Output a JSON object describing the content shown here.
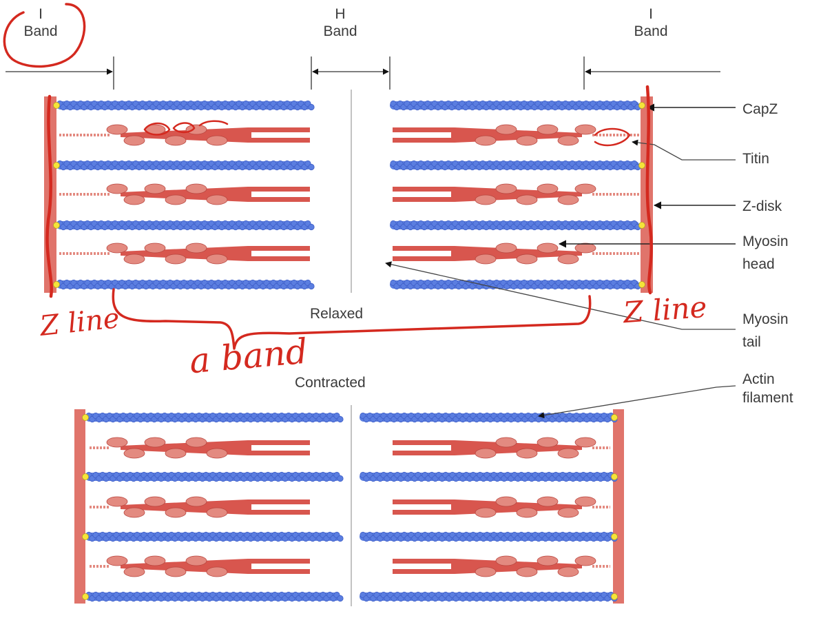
{
  "colors": {
    "actin": "#5b7ee0",
    "actin_dark": "#3f5fc8",
    "myosin": "#d8564e",
    "myosin_light": "#e38a80",
    "zdisk": "#e0746b",
    "capz": "#f5e43a",
    "annotation": "#d4291f",
    "label_text": "#3a3a3a",
    "leader_line": "#444444"
  },
  "bands": {
    "left_i": {
      "top": "I",
      "bottom": "Band"
    },
    "h": {
      "top": "H",
      "bottom": "Band"
    },
    "right_i": {
      "top": "I",
      "bottom": "Band"
    }
  },
  "states": {
    "relaxed": "Relaxed",
    "contracted": "Contracted"
  },
  "callouts": {
    "capz": "CapZ",
    "titin": "Titin",
    "zdisk": "Z-disk",
    "myosin_head": [
      "Myosin",
      "head"
    ],
    "myosin_tail": [
      "Myosin",
      "tail"
    ],
    "actin_filament": [
      "Actin",
      "filament"
    ]
  },
  "handwritten": {
    "z_line_left": "Z line",
    "z_line_right": "Z line",
    "a_band": "a band"
  },
  "icons": [
    "arrow-icon",
    "circle-annotation-icon"
  ]
}
